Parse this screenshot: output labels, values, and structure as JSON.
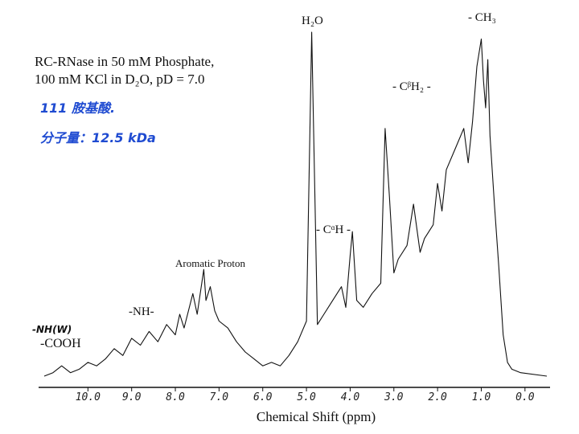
{
  "chart_data": {
    "type": "line",
    "xlabel": "Chemical Shift (ppm)",
    "ylabel": "",
    "x_reversed": true,
    "xlim": [
      11.0,
      -0.5
    ],
    "ylim": [
      0,
      1.0
    ],
    "x_ticks": [
      {
        "value": 10.0,
        "label": "10.0"
      },
      {
        "value": 9.0,
        "label": "9.0"
      },
      {
        "value": 8.0,
        "label": "8.0"
      },
      {
        "value": 7.0,
        "label": "7.0"
      },
      {
        "value": 6.0,
        "label": "6.0"
      },
      {
        "value": 5.0,
        "label": "5.0"
      },
      {
        "value": 4.0,
        "label": "4.0"
      },
      {
        "value": 3.0,
        "label": "3.0"
      },
      {
        "value": 2.0,
        "label": "2.0"
      },
      {
        "value": 1.0,
        "label": "1.0"
      },
      {
        "value": 0.0,
        "label": "0.0"
      }
    ],
    "grid": false,
    "series": [
      {
        "points": [
          [
            11.0,
            0.0
          ],
          [
            10.8,
            0.01
          ],
          [
            10.6,
            0.03
          ],
          [
            10.4,
            0.01
          ],
          [
            10.2,
            0.02
          ],
          [
            10.0,
            0.04
          ],
          [
            9.8,
            0.03
          ],
          [
            9.6,
            0.05
          ],
          [
            9.4,
            0.08
          ],
          [
            9.2,
            0.06
          ],
          [
            9.0,
            0.11
          ],
          [
            8.8,
            0.09
          ],
          [
            8.6,
            0.13
          ],
          [
            8.4,
            0.1
          ],
          [
            8.2,
            0.15
          ],
          [
            8.0,
            0.12
          ],
          [
            7.9,
            0.18
          ],
          [
            7.8,
            0.14
          ],
          [
            7.6,
            0.24
          ],
          [
            7.5,
            0.18
          ],
          [
            7.35,
            0.31
          ],
          [
            7.3,
            0.22
          ],
          [
            7.2,
            0.26
          ],
          [
            7.1,
            0.19
          ],
          [
            7.0,
            0.16
          ],
          [
            6.8,
            0.14
          ],
          [
            6.6,
            0.1
          ],
          [
            6.4,
            0.07
          ],
          [
            6.2,
            0.05
          ],
          [
            6.0,
            0.03
          ],
          [
            5.8,
            0.04
          ],
          [
            5.6,
            0.03
          ],
          [
            5.4,
            0.06
          ],
          [
            5.2,
            0.1
          ],
          [
            5.0,
            0.16
          ],
          [
            4.88,
            1.0
          ],
          [
            4.75,
            0.15
          ],
          [
            4.6,
            0.18
          ],
          [
            4.4,
            0.22
          ],
          [
            4.2,
            0.26
          ],
          [
            4.1,
            0.2
          ],
          [
            4.0,
            0.35
          ],
          [
            3.95,
            0.42
          ],
          [
            3.85,
            0.22
          ],
          [
            3.7,
            0.2
          ],
          [
            3.5,
            0.24
          ],
          [
            3.3,
            0.27
          ],
          [
            3.2,
            0.72
          ],
          [
            3.1,
            0.52
          ],
          [
            3.0,
            0.3
          ],
          [
            2.9,
            0.34
          ],
          [
            2.7,
            0.38
          ],
          [
            2.55,
            0.5
          ],
          [
            2.4,
            0.36
          ],
          [
            2.3,
            0.4
          ],
          [
            2.1,
            0.44
          ],
          [
            2.0,
            0.56
          ],
          [
            1.9,
            0.48
          ],
          [
            1.8,
            0.6
          ],
          [
            1.6,
            0.66
          ],
          [
            1.4,
            0.72
          ],
          [
            1.3,
            0.62
          ],
          [
            1.2,
            0.74
          ],
          [
            1.1,
            0.9
          ],
          [
            1.0,
            0.98
          ],
          [
            0.95,
            0.86
          ],
          [
            0.9,
            0.78
          ],
          [
            0.85,
            0.92
          ],
          [
            0.8,
            0.7
          ],
          [
            0.7,
            0.5
          ],
          [
            0.6,
            0.32
          ],
          [
            0.5,
            0.12
          ],
          [
            0.4,
            0.04
          ],
          [
            0.3,
            0.02
          ],
          [
            0.1,
            0.01
          ],
          [
            -0.5,
            0.0
          ]
        ]
      }
    ],
    "annotations": [
      {
        "text": "H₂O",
        "x": 4.88
      },
      {
        "text": "- CH₃",
        "x": 0.95
      },
      {
        "text": "- CᵝH₂ -",
        "x": 2.2
      },
      {
        "text": "- CᵅH -",
        "x": 3.7
      },
      {
        "text": "Aromatic Proton",
        "x": 7.3
      },
      {
        "text": "-NH-",
        "x": 8.8
      },
      {
        "text": "-NH(W)",
        "x": 11.0
      },
      {
        "text": "-COOH",
        "x": 11.0
      }
    ]
  },
  "sample_note": {
    "line1": "RC-RNase in 50 mM Phosphate,",
    "line2": "100 mM KCl in D₂O, pD = 7.0"
  },
  "handwritten": {
    "line1": "111 胺基酸.",
    "line2": "分子量：12.5 kDa",
    "color": "#1f4bd1"
  },
  "colors": {
    "ink": "#111111",
    "annotation_pen": "#1f4bd1"
  }
}
